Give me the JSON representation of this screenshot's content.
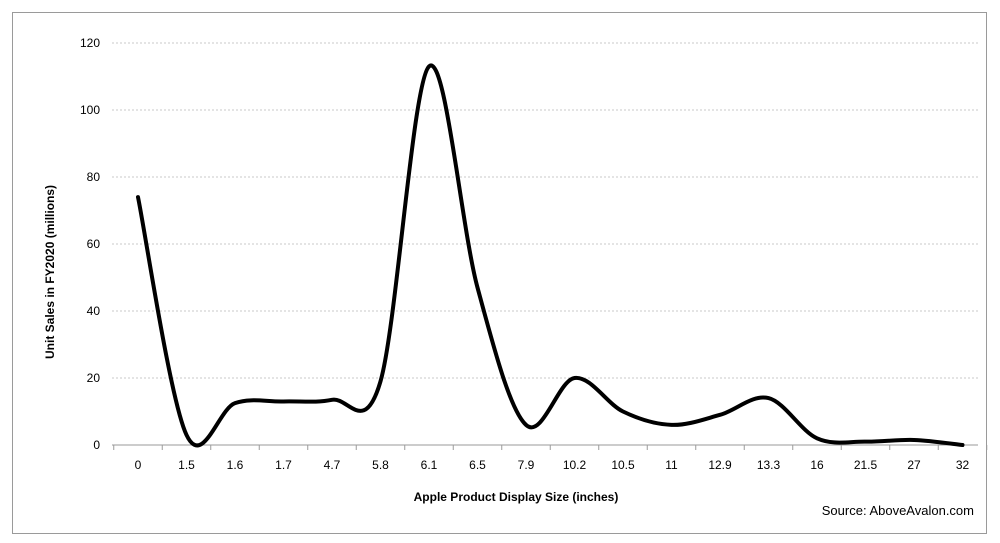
{
  "chart_data": {
    "type": "line",
    "title": "",
    "xlabel": "Apple Product Display Size (inches)",
    "ylabel": "Unit Sales in FY2020 (millions)",
    "source": "Source: AboveAvalon.com",
    "categories": [
      "0",
      "1.5",
      "1.6",
      "1.7",
      "4.7",
      "5.8",
      "6.1",
      "6.5",
      "7.9",
      "10.2",
      "10.5",
      "11",
      "12.9",
      "13.3",
      "16",
      "21.5",
      "27",
      "32"
    ],
    "series": [
      {
        "values": [
          74,
          3,
          12.5,
          13,
          13.5,
          19,
          113,
          47,
          6,
          20,
          10,
          6,
          9,
          14,
          2,
          1,
          1.5,
          0
        ]
      }
    ],
    "ylim": [
      0,
      120
    ],
    "yticks": [
      0,
      20,
      40,
      60,
      80,
      100,
      120
    ],
    "grid": true,
    "line_color": "#000000",
    "grid_color": "#c8c8c8"
  }
}
